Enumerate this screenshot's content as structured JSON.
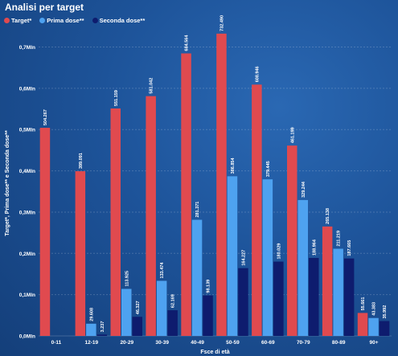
{
  "chart_data": {
    "type": "bar",
    "title": "Analisi per target",
    "xlabel": "Fsce di età",
    "ylabel": "Target*, Prima dose** e Seconda dose**",
    "categories": [
      "0-11",
      "12-19",
      "20-29",
      "30-39",
      "40-49",
      "50-59",
      "60-69",
      "70-79",
      "80-89",
      "90+"
    ],
    "y_ticks": [
      "0,0Mln",
      "0,1Mln",
      "0,2Mln",
      "0,3Mln",
      "0,4Mln",
      "0,5Mln",
      "0,6Mln",
      "0,7Mln"
    ],
    "ylim": [
      0,
      0.74
    ],
    "grid": true,
    "legend_position": "top-left",
    "series": [
      {
        "name": "Target*",
        "color": "#e04a4f",
        "values": [
          0.504267,
          0.399091,
          0.551159,
          0.581042,
          0.684564,
          0.73249,
          0.608946,
          0.461199,
          0.265138,
          0.055661
        ],
        "labels": [
          "504.267",
          "399.091",
          "551.159",
          "581.042",
          "684.564",
          "732.490",
          "608.946",
          "461.199",
          "265.138",
          "55.661"
        ]
      },
      {
        "name": "Prima dose**",
        "color": "#4ea2f0",
        "values": [
          0,
          0.029608,
          0.113925,
          0.133474,
          0.281371,
          0.386854,
          0.379445,
          0.329244,
          0.211219,
          0.043383
        ],
        "labels": [
          "",
          "29.608",
          "113.925",
          "133.474",
          "281.371",
          "386.854",
          "379.445",
          "329.244",
          "211.219",
          "43.383"
        ]
      },
      {
        "name": "Seconda dose**",
        "color": "#0e1c6e",
        "values": [
          0,
          0.003237,
          0.046327,
          0.062169,
          0.098139,
          0.164227,
          0.180029,
          0.188964,
          0.187665,
          0.035992
        ],
        "labels": [
          "",
          "3.237",
          "46.327",
          "62.169",
          "98.139",
          "164.227",
          "180.029",
          "188.964",
          "187.665",
          "35.992"
        ]
      }
    ]
  }
}
